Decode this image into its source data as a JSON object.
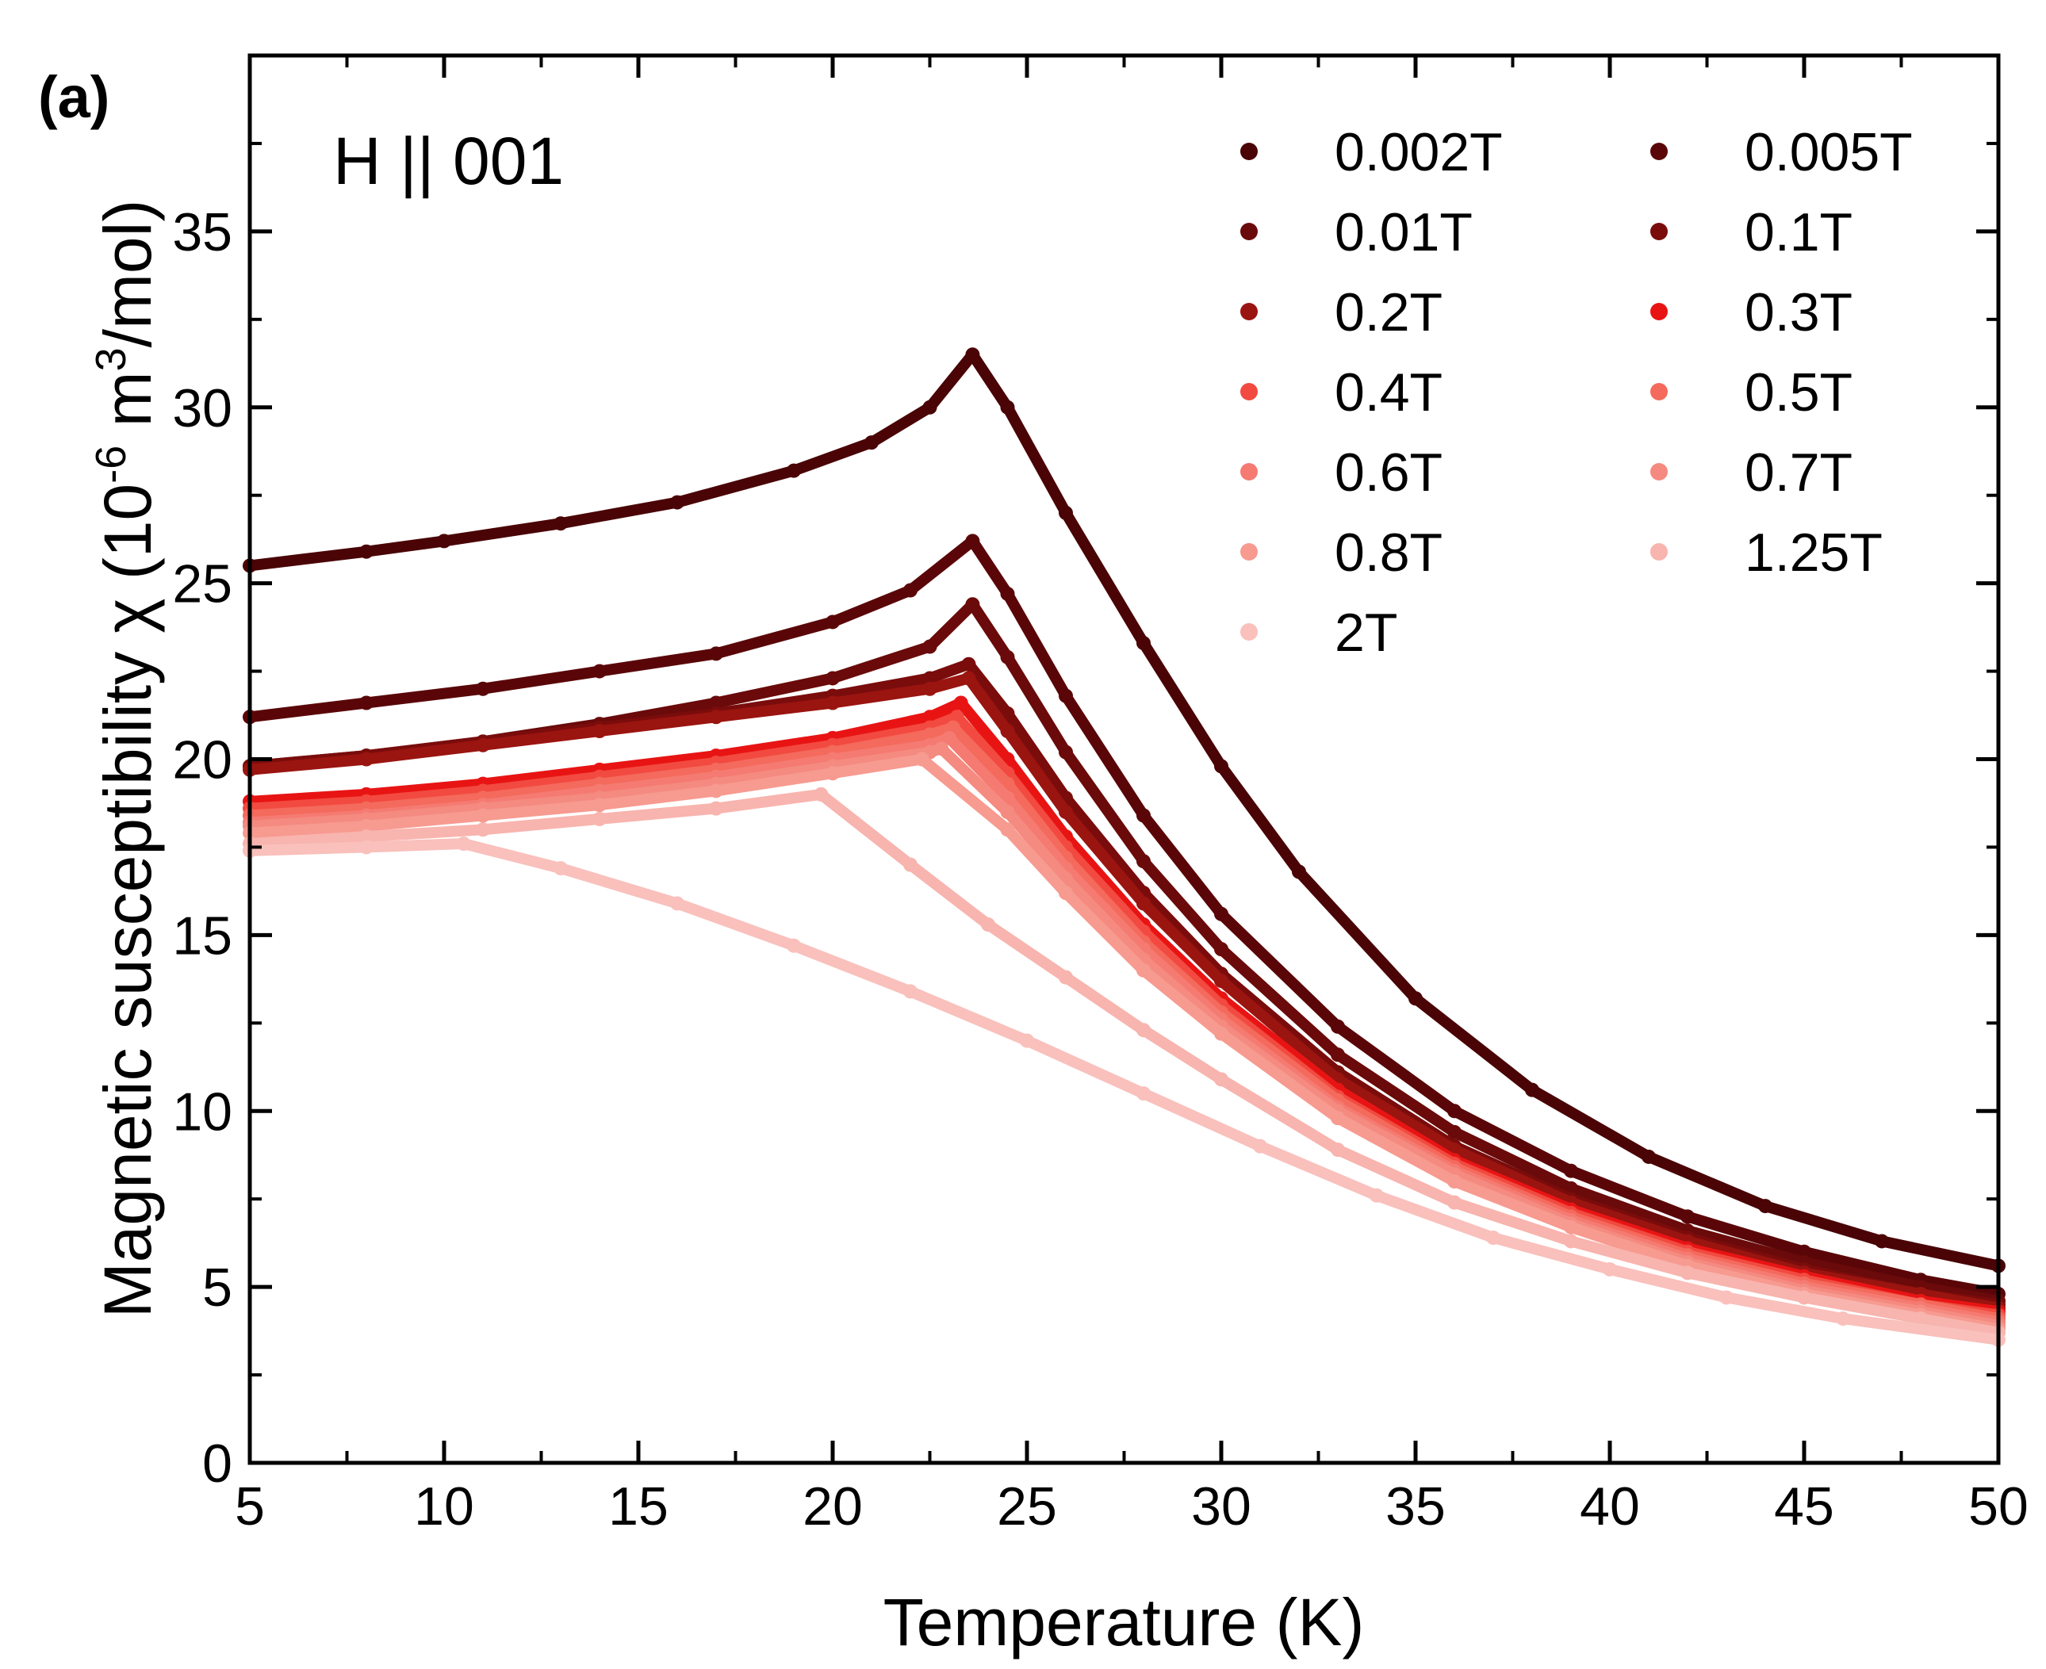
{
  "panel_label": "(a)",
  "annotation": "H || 001",
  "colors": {
    "annotation": "#ff1a1a",
    "axis": "#000000"
  },
  "chart_data": {
    "type": "scatter",
    "title": "",
    "xlabel": "Temperature (K)",
    "ylabel": {
      "main": "Magnetic susceptibility χ (10",
      "sup1": "-6",
      "mid": " m",
      "sup2": "3",
      "end": "/mol)"
    },
    "xlim": [
      5,
      50
    ],
    "ylim": [
      0,
      40
    ],
    "x_ticks": [
      5,
      10,
      15,
      20,
      25,
      30,
      35,
      40,
      45,
      50
    ],
    "y_ticks": [
      0,
      5,
      10,
      15,
      20,
      25,
      30,
      35
    ],
    "legend_position": "top-right",
    "series": [
      {
        "name": "0.002T",
        "color": "#4a0406",
        "points": [
          [
            5,
            25.5
          ],
          [
            8,
            25.9
          ],
          [
            10,
            26.2
          ],
          [
            13,
            26.7
          ],
          [
            16,
            27.3
          ],
          [
            19,
            28.2
          ],
          [
            21,
            29.0
          ],
          [
            22.5,
            30.0
          ],
          [
            23.6,
            31.5
          ],
          [
            24.5,
            30.0
          ],
          [
            26,
            27.0
          ],
          [
            28,
            23.3
          ],
          [
            30,
            19.8
          ],
          [
            32,
            16.8
          ],
          [
            35,
            13.2
          ],
          [
            38,
            10.6
          ],
          [
            41,
            8.7
          ],
          [
            44,
            7.3
          ],
          [
            47,
            6.3
          ],
          [
            50,
            5.6
          ]
        ]
      },
      {
        "name": "0.005T",
        "color": "#5a0608",
        "points": [
          [
            5,
            21.2
          ],
          [
            8,
            21.6
          ],
          [
            11,
            22.0
          ],
          [
            14,
            22.5
          ],
          [
            17,
            23.0
          ],
          [
            20,
            23.9
          ],
          [
            22,
            24.8
          ],
          [
            23.6,
            26.2
          ],
          [
            24.5,
            24.7
          ],
          [
            26,
            21.8
          ],
          [
            28,
            18.4
          ],
          [
            30,
            15.6
          ],
          [
            33,
            12.4
          ],
          [
            36,
            10.0
          ],
          [
            39,
            8.3
          ],
          [
            42,
            7.0
          ],
          [
            45,
            6.0
          ],
          [
            48,
            5.2
          ],
          [
            50,
            4.8
          ]
        ]
      },
      {
        "name": "0.01T",
        "color": "#6a0a0a",
        "points": [
          [
            5,
            19.8
          ],
          [
            8,
            20.1
          ],
          [
            11,
            20.5
          ],
          [
            14,
            21.0
          ],
          [
            17,
            21.6
          ],
          [
            20,
            22.3
          ],
          [
            22.5,
            23.2
          ],
          [
            23.6,
            24.4
          ],
          [
            24.5,
            22.9
          ],
          [
            26,
            20.2
          ],
          [
            28,
            17.1
          ],
          [
            30,
            14.6
          ],
          [
            33,
            11.6
          ],
          [
            36,
            9.4
          ],
          [
            39,
            7.8
          ],
          [
            42,
            6.6
          ],
          [
            45,
            5.7
          ],
          [
            48,
            5.0
          ],
          [
            50,
            4.6
          ]
        ]
      },
      {
        "name": "0.1T",
        "color": "#7a0c0c",
        "points": [
          [
            5,
            19.8
          ],
          [
            8,
            20.1
          ],
          [
            11,
            20.5
          ],
          [
            14,
            20.9
          ],
          [
            17,
            21.3
          ],
          [
            20,
            21.8
          ],
          [
            22.5,
            22.3
          ],
          [
            23.5,
            22.7
          ],
          [
            24.5,
            21.3
          ],
          [
            26,
            18.9
          ],
          [
            28,
            16.2
          ],
          [
            30,
            13.9
          ],
          [
            33,
            11.1
          ],
          [
            36,
            9.0
          ],
          [
            39,
            7.5
          ],
          [
            42,
            6.4
          ],
          [
            45,
            5.5
          ],
          [
            48,
            4.8
          ],
          [
            50,
            4.5
          ]
        ]
      },
      {
        "name": "0.2T",
        "color": "#9a1410",
        "points": [
          [
            5,
            19.7
          ],
          [
            8,
            20.0
          ],
          [
            11,
            20.4
          ],
          [
            14,
            20.8
          ],
          [
            17,
            21.2
          ],
          [
            20,
            21.6
          ],
          [
            22.5,
            22.0
          ],
          [
            23.5,
            22.3
          ],
          [
            24.5,
            20.8
          ],
          [
            26,
            18.5
          ],
          [
            28,
            15.9
          ],
          [
            30,
            13.7
          ],
          [
            33,
            10.9
          ],
          [
            36,
            8.9
          ],
          [
            39,
            7.4
          ],
          [
            42,
            6.3
          ],
          [
            45,
            5.4
          ],
          [
            48,
            4.8
          ],
          [
            50,
            4.4
          ]
        ]
      },
      {
        "name": "0.3T",
        "color": "#e81414",
        "points": [
          [
            5,
            18.8
          ],
          [
            8,
            19.0
          ],
          [
            11,
            19.3
          ],
          [
            14,
            19.7
          ],
          [
            17,
            20.1
          ],
          [
            20,
            20.6
          ],
          [
            22.5,
            21.2
          ],
          [
            23.3,
            21.6
          ],
          [
            24.5,
            20.0
          ],
          [
            26,
            17.8
          ],
          [
            28,
            15.3
          ],
          [
            30,
            13.2
          ],
          [
            33,
            10.6
          ],
          [
            36,
            8.6
          ],
          [
            39,
            7.2
          ],
          [
            42,
            6.1
          ],
          [
            45,
            5.3
          ],
          [
            48,
            4.6
          ],
          [
            50,
            4.3
          ]
        ]
      },
      {
        "name": "0.4T",
        "color": "#f24a40",
        "points": [
          [
            5,
            18.6
          ],
          [
            8,
            18.8
          ],
          [
            11,
            19.1
          ],
          [
            14,
            19.5
          ],
          [
            17,
            19.9
          ],
          [
            20,
            20.4
          ],
          [
            22.5,
            20.9
          ],
          [
            23.2,
            21.2
          ],
          [
            24.5,
            19.6
          ],
          [
            26,
            17.5
          ],
          [
            28,
            15.1
          ],
          [
            30,
            13.0
          ],
          [
            33,
            10.4
          ],
          [
            36,
            8.5
          ],
          [
            39,
            7.1
          ],
          [
            42,
            6.0
          ],
          [
            45,
            5.2
          ],
          [
            48,
            4.5
          ],
          [
            50,
            4.2
          ]
        ]
      },
      {
        "name": "0.5T",
        "color": "#f46a5c",
        "points": [
          [
            5,
            18.4
          ],
          [
            8,
            18.6
          ],
          [
            11,
            18.9
          ],
          [
            14,
            19.3
          ],
          [
            17,
            19.7
          ],
          [
            20,
            20.2
          ],
          [
            22.5,
            20.7
          ],
          [
            23.1,
            20.9
          ],
          [
            24.5,
            19.3
          ],
          [
            26,
            17.2
          ],
          [
            28,
            14.8
          ],
          [
            30,
            12.8
          ],
          [
            33,
            10.3
          ],
          [
            36,
            8.4
          ],
          [
            39,
            7.0
          ],
          [
            42,
            5.9
          ],
          [
            45,
            5.1
          ],
          [
            48,
            4.5
          ],
          [
            50,
            4.1
          ]
        ]
      },
      {
        "name": "0.6T",
        "color": "#f57a72",
        "points": [
          [
            5,
            18.2
          ],
          [
            8,
            18.4
          ],
          [
            11,
            18.7
          ],
          [
            14,
            19.1
          ],
          [
            17,
            19.5
          ],
          [
            20,
            20.0
          ],
          [
            22.5,
            20.4
          ],
          [
            23.0,
            20.6
          ],
          [
            24.5,
            18.9
          ],
          [
            26,
            16.9
          ],
          [
            28,
            14.6
          ],
          [
            30,
            12.6
          ],
          [
            33,
            10.1
          ],
          [
            36,
            8.3
          ],
          [
            39,
            6.9
          ],
          [
            42,
            5.8
          ],
          [
            45,
            5.0
          ],
          [
            48,
            4.4
          ],
          [
            50,
            4.0
          ]
        ]
      },
      {
        "name": "0.7T",
        "color": "#f48a80",
        "points": [
          [
            5,
            18.1
          ],
          [
            8,
            18.3
          ],
          [
            11,
            18.6
          ],
          [
            14,
            18.9
          ],
          [
            17,
            19.3
          ],
          [
            20,
            19.8
          ],
          [
            22.5,
            20.2
          ],
          [
            22.8,
            20.3
          ],
          [
            24.5,
            18.5
          ],
          [
            26,
            16.6
          ],
          [
            28,
            14.3
          ],
          [
            30,
            12.4
          ],
          [
            33,
            10.0
          ],
          [
            36,
            8.2
          ],
          [
            39,
            6.8
          ],
          [
            42,
            5.7
          ],
          [
            45,
            4.9
          ],
          [
            48,
            4.3
          ],
          [
            50,
            3.9
          ]
        ]
      },
      {
        "name": "0.8T",
        "color": "#f79a90",
        "points": [
          [
            5,
            17.9
          ],
          [
            8,
            18.1
          ],
          [
            11,
            18.4
          ],
          [
            14,
            18.7
          ],
          [
            17,
            19.1
          ],
          [
            20,
            19.6
          ],
          [
            22.3,
            20.0
          ],
          [
            24.5,
            18.0
          ],
          [
            26,
            16.2
          ],
          [
            28,
            14.0
          ],
          [
            30,
            12.2
          ],
          [
            33,
            9.8
          ],
          [
            36,
            8.0
          ],
          [
            39,
            6.7
          ],
          [
            42,
            5.6
          ],
          [
            45,
            4.8
          ],
          [
            48,
            4.2
          ],
          [
            50,
            3.8
          ]
        ]
      },
      {
        "name": "1.25T",
        "color": "#f8b4ae",
        "points": [
          [
            5,
            17.6
          ],
          [
            8,
            17.8
          ],
          [
            11,
            18.0
          ],
          [
            14,
            18.3
          ],
          [
            17,
            18.6
          ],
          [
            19.7,
            19.0
          ],
          [
            22,
            17.0
          ],
          [
            24,
            15.3
          ],
          [
            26,
            13.8
          ],
          [
            28,
            12.3
          ],
          [
            30,
            10.9
          ],
          [
            33,
            8.9
          ],
          [
            36,
            7.4
          ],
          [
            39,
            6.3
          ],
          [
            42,
            5.4
          ],
          [
            45,
            4.7
          ],
          [
            48,
            4.1
          ],
          [
            50,
            3.7
          ]
        ]
      },
      {
        "name": "2T",
        "color": "#f9c0bc",
        "points": [
          [
            5,
            17.4
          ],
          [
            8,
            17.5
          ],
          [
            10.5,
            17.6
          ],
          [
            13,
            16.9
          ],
          [
            16,
            15.9
          ],
          [
            19,
            14.7
          ],
          [
            22,
            13.4
          ],
          [
            25,
            12.0
          ],
          [
            28,
            10.5
          ],
          [
            31,
            9.0
          ],
          [
            34,
            7.6
          ],
          [
            37,
            6.4
          ],
          [
            40,
            5.5
          ],
          [
            43,
            4.7
          ],
          [
            46,
            4.1
          ],
          [
            50,
            3.5
          ]
        ]
      }
    ]
  }
}
